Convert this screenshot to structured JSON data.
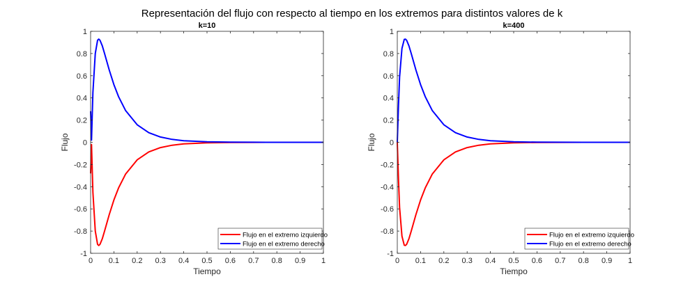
{
  "figure_title": "Representación del flujo con respecto al tiempo en los extremos para distintos valores de k",
  "colors": {
    "left": "#ff0000",
    "right": "#0000ff",
    "axis": "#262626"
  },
  "chart_data": [
    {
      "type": "line",
      "title": "k=10",
      "xlabel": "Tiempo",
      "ylabel": "Flujo",
      "xlim": [
        0,
        1
      ],
      "ylim": [
        -1,
        1
      ],
      "xticks": [
        "0",
        "0.1",
        "0.2",
        "0.3",
        "0.4",
        "0.5",
        "0.6",
        "0.7",
        "0.8",
        "0.9",
        "1"
      ],
      "yticks": [
        "-1",
        "-0.8",
        "-0.6",
        "-0.4",
        "-0.2",
        "0",
        "0.2",
        "0.4",
        "0.6",
        "0.8",
        "1"
      ],
      "grid": false,
      "legend_position": "bottom-right",
      "x": [
        0,
        0.004,
        0.01,
        0.02,
        0.03,
        0.035,
        0.04,
        0.05,
        0.06,
        0.08,
        0.1,
        0.12,
        0.15,
        0.2,
        0.25,
        0.3,
        0.35,
        0.4,
        0.5,
        0.6,
        0.7,
        0.8,
        1
      ],
      "series": [
        {
          "name": "Flujo en el extremo izquierdo",
          "color": "#ff0000",
          "values": [
            -0.28,
            -0.02,
            -0.45,
            -0.8,
            -0.92,
            -0.93,
            -0.92,
            -0.87,
            -0.8,
            -0.652,
            -0.52,
            -0.411,
            -0.287,
            -0.158,
            -0.0866,
            -0.0475,
            -0.0261,
            -0.0143,
            -0.0043,
            -0.0013,
            -0.0004,
            -0.0001,
            0
          ]
        },
        {
          "name": "Flujo en el extremo derecho",
          "color": "#0000ff",
          "values": [
            0.28,
            0.02,
            0.45,
            0.8,
            0.92,
            0.93,
            0.92,
            0.87,
            0.8,
            0.652,
            0.52,
            0.411,
            0.287,
            0.158,
            0.0866,
            0.0475,
            0.0261,
            0.0143,
            0.0043,
            0.0013,
            0.0004,
            0.0001,
            0
          ]
        }
      ]
    },
    {
      "type": "line",
      "title": "k=400",
      "xlabel": "Tiempo",
      "ylabel": "Flujo",
      "xlim": [
        0,
        1
      ],
      "ylim": [
        -1,
        1
      ],
      "xticks": [
        "0",
        "0.1",
        "0.2",
        "0.3",
        "0.4",
        "0.5",
        "0.6",
        "0.7",
        "0.8",
        "0.9",
        "1"
      ],
      "yticks": [
        "-1",
        "-0.8",
        "-0.6",
        "-0.4",
        "-0.2",
        "0",
        "0.2",
        "0.4",
        "0.6",
        "0.8",
        "1"
      ],
      "grid": false,
      "legend_position": "bottom-right",
      "x": [
        0,
        0.005,
        0.01,
        0.02,
        0.03,
        0.035,
        0.04,
        0.05,
        0.06,
        0.08,
        0.1,
        0.12,
        0.15,
        0.2,
        0.25,
        0.3,
        0.35,
        0.4,
        0.5,
        0.6,
        0.7,
        0.8,
        1
      ],
      "series": [
        {
          "name": "Flujo en el extremo izquierdo",
          "color": "#ff0000",
          "values": [
            0,
            -0.33,
            -0.588,
            -0.846,
            -0.927,
            -0.93,
            -0.919,
            -0.869,
            -0.8,
            -0.652,
            -0.52,
            -0.411,
            -0.287,
            -0.158,
            -0.0866,
            -0.0475,
            -0.0261,
            -0.0143,
            -0.0043,
            -0.0013,
            -0.0004,
            -0.0001,
            0
          ]
        },
        {
          "name": "Flujo en el extremo derecho",
          "color": "#0000ff",
          "values": [
            0,
            0.33,
            0.588,
            0.846,
            0.927,
            0.93,
            0.919,
            0.869,
            0.8,
            0.652,
            0.52,
            0.411,
            0.287,
            0.158,
            0.0866,
            0.0475,
            0.0261,
            0.0143,
            0.0043,
            0.0013,
            0.0004,
            0.0001,
            0
          ]
        }
      ]
    }
  ]
}
